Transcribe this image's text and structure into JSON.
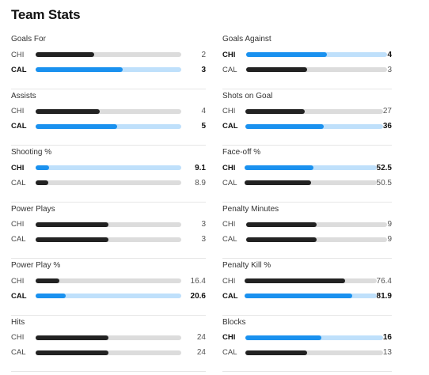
{
  "title": "Team Stats",
  "colors": {
    "leader_fill": "#1a91ef",
    "leader_track": "#bfe0fb",
    "other_fill": "#222222",
    "other_track": "#dcdcdc"
  },
  "stats": [
    {
      "name": "Goals For",
      "rows": [
        {
          "team": "CHI",
          "value": "2",
          "pct": 0.4,
          "lead": false
        },
        {
          "team": "CAL",
          "value": "3",
          "pct": 0.6,
          "lead": true
        }
      ]
    },
    {
      "name": "Goals Against",
      "rows": [
        {
          "team": "CHI",
          "value": "4",
          "pct": 0.57,
          "lead": true
        },
        {
          "team": "CAL",
          "value": "3",
          "pct": 0.43,
          "lead": false
        }
      ]
    },
    {
      "name": "Assists",
      "rows": [
        {
          "team": "CHI",
          "value": "4",
          "pct": 0.44,
          "lead": false
        },
        {
          "team": "CAL",
          "value": "5",
          "pct": 0.56,
          "lead": true
        }
      ]
    },
    {
      "name": "Shots on Goal",
      "rows": [
        {
          "team": "CHI",
          "value": "27",
          "pct": 0.43,
          "lead": false
        },
        {
          "team": "CAL",
          "value": "36",
          "pct": 0.57,
          "lead": true
        }
      ]
    },
    {
      "name": "Shooting %",
      "rows": [
        {
          "team": "CHI",
          "value": "9.1",
          "pct": 0.091,
          "lead": true
        },
        {
          "team": "CAL",
          "value": "8.9",
          "pct": 0.089,
          "lead": false
        }
      ]
    },
    {
      "name": "Face-off %",
      "rows": [
        {
          "team": "CHI",
          "value": "52.5",
          "pct": 0.525,
          "lead": true
        },
        {
          "team": "CAL",
          "value": "50.5",
          "pct": 0.505,
          "lead": false
        }
      ]
    },
    {
      "name": "Power Plays",
      "rows": [
        {
          "team": "CHI",
          "value": "3",
          "pct": 0.5,
          "lead": false
        },
        {
          "team": "CAL",
          "value": "3",
          "pct": 0.5,
          "lead": false
        }
      ]
    },
    {
      "name": "Penalty Minutes",
      "rows": [
        {
          "team": "CHI",
          "value": "9",
          "pct": 0.5,
          "lead": false
        },
        {
          "team": "CAL",
          "value": "9",
          "pct": 0.5,
          "lead": false
        }
      ]
    },
    {
      "name": "Power Play %",
      "rows": [
        {
          "team": "CHI",
          "value": "16.4",
          "pct": 0.164,
          "lead": false
        },
        {
          "team": "CAL",
          "value": "20.6",
          "pct": 0.206,
          "lead": true
        }
      ]
    },
    {
      "name": "Penalty Kill %",
      "rows": [
        {
          "team": "CHI",
          "value": "76.4",
          "pct": 0.764,
          "lead": false
        },
        {
          "team": "CAL",
          "value": "81.9",
          "pct": 0.819,
          "lead": true
        }
      ]
    },
    {
      "name": "Hits",
      "rows": [
        {
          "team": "CHI",
          "value": "24",
          "pct": 0.5,
          "lead": false
        },
        {
          "team": "CAL",
          "value": "24",
          "pct": 0.5,
          "lead": false
        }
      ]
    },
    {
      "name": "Blocks",
      "rows": [
        {
          "team": "CHI",
          "value": "16",
          "pct": 0.55,
          "lead": true
        },
        {
          "team": "CAL",
          "value": "13",
          "pct": 0.45,
          "lead": false
        }
      ]
    }
  ]
}
